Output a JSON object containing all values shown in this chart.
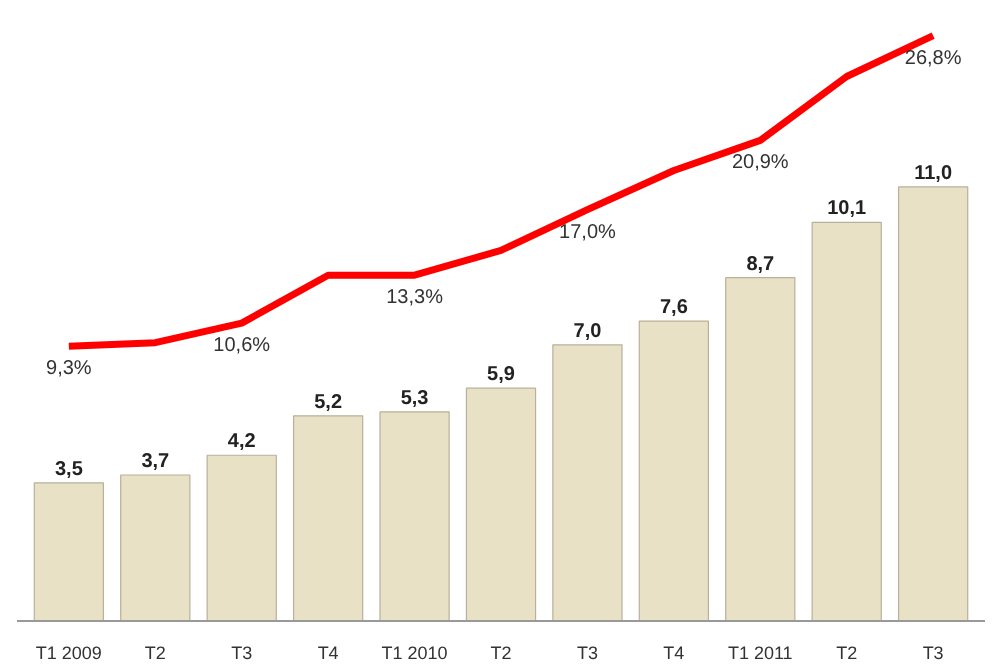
{
  "chart_data": {
    "type": "bar",
    "categories": [
      "T1 2009",
      "T2",
      "T3",
      "T4",
      "T1 2010",
      "T2",
      "T3",
      "T4",
      "T1 2011",
      "T2",
      "T3"
    ],
    "tick_labels": "x",
    "grid": false,
    "series": [
      {
        "color": "#e9e1c6",
        "values": [
          3.5,
          3.7,
          4.2,
          5.2,
          5.3,
          5.9,
          7.0,
          7.6,
          8.7,
          10.1,
          11.0
        ],
        "value_labels": [
          "3,5",
          "3,7",
          "4,2",
          "5,2",
          "5,3",
          "5,9",
          "7,0",
          "7,6",
          "8,7",
          "10,1",
          "11,0"
        ]
      },
      {
        "type": "line",
        "axis": "y2",
        "color": "#ff0000",
        "marker": "none",
        "line_style": "solid",
        "values": [
          9.3,
          9.5,
          10.6,
          13.3,
          13.3,
          14.7,
          17.0,
          19.2,
          20.9,
          24.5,
          26.8
        ],
        "value_labels": [
          "9,3%",
          null,
          "10,6%",
          null,
          "13,3%",
          null,
          "17,0%",
          null,
          "20,9%",
          null,
          "26,8%"
        ]
      }
    ]
  }
}
